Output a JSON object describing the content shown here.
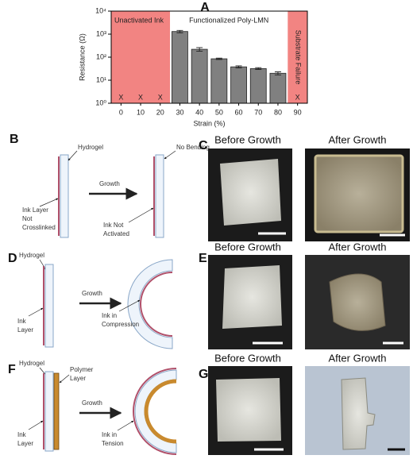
{
  "chart_data": {
    "type": "bar",
    "panel": "A",
    "x": [
      0,
      10,
      20,
      30,
      40,
      50,
      60,
      70,
      80,
      90
    ],
    "values": [
      null,
      null,
      null,
      1300,
      220,
      85,
      38,
      32,
      20,
      null
    ],
    "errors": [
      null,
      null,
      null,
      150,
      40,
      6,
      4,
      3,
      3,
      null
    ],
    "color": "#808080",
    "xlim": [
      -5,
      95
    ],
    "xticks": [
      0,
      10,
      20,
      30,
      40,
      50,
      60,
      70,
      80,
      90
    ],
    "ylim": [
      1,
      10000
    ],
    "yticks": [
      {
        "value": 1,
        "label": "10⁰"
      },
      {
        "value": 10,
        "label": "10¹"
      },
      {
        "value": 100,
        "label": "10²"
      },
      {
        "value": 1000,
        "label": "10³"
      },
      {
        "value": 10000,
        "label": "10⁴"
      }
    ],
    "log_y": true,
    "xlabel": "Strain (%)",
    "ylabel": "Resistance (Ω)",
    "missing_label": "X",
    "regions": [
      {
        "label": "Unactivated Ink",
        "xlim": [
          -5,
          25
        ],
        "color": "#f28482"
      },
      {
        "label": "Functionalized Poly-LMN",
        "xlim": [
          25,
          85
        ],
        "color": "#ffffff"
      },
      {
        "label": "Substrate Failure",
        "xlim": [
          85,
          95
        ],
        "color": "#f28482"
      }
    ]
  },
  "panel_b": {
    "letter": "B",
    "hydrogel": "Hydrogel",
    "ink_layer": [
      "Ink Layer",
      "Not",
      "Crosslinked"
    ],
    "arrow": "Growth",
    "no_bending": "No Bending",
    "ink_state": [
      "Ink Not",
      "Activated"
    ]
  },
  "panel_c": {
    "letter": "C",
    "before": "Before Growth",
    "after": "After Growth"
  },
  "panel_d": {
    "letter": "D",
    "hydrogel": "Hydrogel",
    "ink_layer": [
      "Ink",
      "Layer"
    ],
    "arrow": "Growth",
    "ink_state": [
      "Ink in",
      "Compression"
    ]
  },
  "panel_e": {
    "letter": "E",
    "before": "Before Growth",
    "after": "After Growth"
  },
  "panel_f": {
    "letter": "F",
    "hydrogel": "Hydrogel",
    "polymer": [
      "Polymer",
      "Layer"
    ],
    "ink_layer": [
      "Ink",
      "Layer"
    ],
    "arrow": "Growth",
    "ink_state": [
      "Ink in",
      "Tension"
    ]
  },
  "panel_g": {
    "letter": "G",
    "before": "Before Growth",
    "after": "After Growth"
  }
}
